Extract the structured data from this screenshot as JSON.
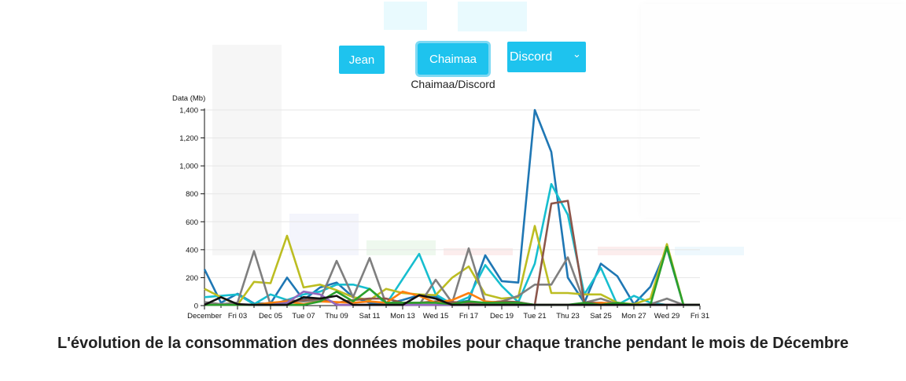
{
  "buttons": {
    "jean": "Jean",
    "chaimaa": "Chaimaa"
  },
  "select": {
    "selected": "Discord",
    "options": [
      "Discord"
    ]
  },
  "colors": {
    "button": "#1ec3ee"
  },
  "chart_data": {
    "type": "line",
    "title": "Chaimaa/Discord",
    "xlabel": "",
    "ylabel": "Data (Mb)",
    "ylim": [
      0,
      1400
    ],
    "grid": "horizontal",
    "x": [
      "December",
      "02",
      "Fri 03",
      "04",
      "Dec 05",
      "06",
      "Tue 07",
      "08",
      "Thu 09",
      "10",
      "Sat 11",
      "12",
      "Mon 13",
      "14",
      "Wed 15",
      "16",
      "Fri 17",
      "18",
      "Dec 19",
      "20",
      "Tue 21",
      "22",
      "Thu 23",
      "24",
      "Sat 25",
      "26",
      "Mon 27",
      "28",
      "Wed 29",
      "30",
      "Fri 31"
    ],
    "x_tick_labels": [
      "December",
      "Fri 03",
      "Dec 05",
      "Tue 07",
      "Thu 09",
      "Sat 11",
      "Mon 13",
      "Wed 15",
      "Fri 17",
      "Dec 19",
      "Tue 21",
      "Thu 23",
      "Sat 25",
      "Mon 27",
      "Wed 29",
      "Fri 31"
    ],
    "y_tick_labels": [
      "0",
      "200",
      "400",
      "600",
      "800",
      "1,000",
      "1,200",
      "1,400"
    ],
    "series": [
      {
        "color": "#1f77b4",
        "values": [
          260,
          20,
          85,
          15,
          15,
          200,
          40,
          130,
          165,
          60,
          20,
          10,
          40,
          75,
          65,
          15,
          35,
          360,
          175,
          165,
          1400,
          1100,
          200,
          20,
          300,
          210,
          10,
          135,
          410,
          5,
          5
        ]
      },
      {
        "color": "#17becf",
        "values": [
          60,
          70,
          80,
          10,
          80,
          40,
          80,
          100,
          150,
          150,
          120,
          10,
          190,
          370,
          80,
          10,
          60,
          290,
          140,
          25,
          300,
          870,
          650,
          80,
          270,
          5,
          70,
          20,
          5,
          5,
          5
        ]
      },
      {
        "color": "#bcbd22",
        "values": [
          120,
          60,
          5,
          170,
          160,
          500,
          130,
          150,
          110,
          60,
          40,
          120,
          90,
          80,
          75,
          200,
          280,
          80,
          50,
          60,
          570,
          90,
          90,
          80,
          80,
          20,
          10,
          50,
          440,
          5,
          5
        ]
      },
      {
        "color": "#7f7f7f",
        "values": [
          25,
          10,
          20,
          390,
          5,
          40,
          30,
          40,
          320,
          60,
          340,
          10,
          20,
          5,
          185,
          20,
          410,
          20,
          30,
          70,
          150,
          150,
          345,
          20,
          50,
          10,
          5,
          10,
          50,
          5,
          5
        ]
      },
      {
        "color": "#8c564b",
        "values": [
          5,
          5,
          5,
          5,
          10,
          25,
          40,
          50,
          20,
          40,
          50,
          50,
          20,
          20,
          30,
          25,
          20,
          20,
          30,
          25,
          5,
          730,
          750,
          20,
          20,
          5,
          5,
          5,
          5,
          5,
          5
        ]
      },
      {
        "color": "#ff7f0e",
        "values": [
          5,
          5,
          5,
          5,
          20,
          30,
          10,
          30,
          25,
          20,
          30,
          20,
          100,
          70,
          20,
          40,
          90,
          30,
          20,
          10,
          5,
          5,
          5,
          5,
          20,
          15,
          5,
          5,
          5,
          5,
          5
        ]
      },
      {
        "color": "#9467bd",
        "values": [
          5,
          5,
          5,
          5,
          5,
          20,
          100,
          80,
          5,
          5,
          5,
          5,
          5,
          5,
          5,
          5,
          5,
          5,
          5,
          5,
          5,
          5,
          5,
          5,
          5,
          5,
          5,
          5,
          5,
          5,
          5
        ]
      },
      {
        "color": "#2ca02c",
        "values": [
          5,
          5,
          5,
          5,
          5,
          5,
          5,
          30,
          100,
          30,
          120,
          20,
          20,
          20,
          20,
          10,
          30,
          20,
          20,
          20,
          5,
          5,
          5,
          20,
          5,
          20,
          5,
          5,
          420,
          5,
          5
        ]
      },
      {
        "color": "#111111",
        "values": [
          5,
          60,
          10,
          5,
          5,
          5,
          60,
          50,
          70,
          5,
          5,
          5,
          5,
          75,
          50,
          5,
          5,
          5,
          5,
          5,
          5,
          5,
          5,
          5,
          5,
          5,
          5,
          5,
          5,
          5,
          5
        ]
      }
    ]
  }
}
